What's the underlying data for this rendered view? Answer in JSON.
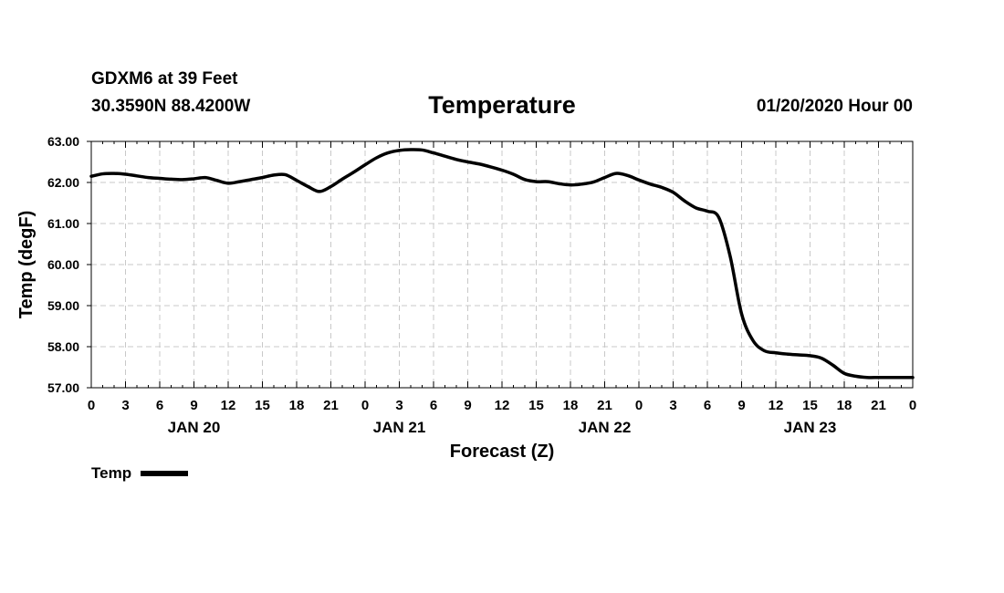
{
  "header": {
    "station": "GDXM6 at 39 Feet",
    "coords": "30.3590N 88.4200W",
    "title": "Temperature",
    "date": "01/20/2020 Hour 00"
  },
  "legend": {
    "label": "Temp"
  },
  "chart_data": {
    "type": "line",
    "title": "Temperature",
    "xlabel": "Forecast (Z)",
    "ylabel": "Temp (degF)",
    "x_unit": "forecast hour",
    "xlim": [
      0,
      72
    ],
    "ylim": [
      57,
      63
    ],
    "y_ticks": [
      57,
      58,
      59,
      60,
      61,
      62,
      63
    ],
    "y_tick_labels": [
      "57.00",
      "58.00",
      "59.00",
      "60.00",
      "61.00",
      "62.00",
      "63.00"
    ],
    "x_ticks": [
      0,
      3,
      6,
      9,
      12,
      15,
      18,
      21,
      24,
      27,
      30,
      33,
      36,
      39,
      42,
      45,
      48,
      51,
      54,
      57,
      60,
      63,
      66,
      69,
      72
    ],
    "x_tick_labels": [
      "0",
      "3",
      "6",
      "9",
      "12",
      "15",
      "18",
      "21",
      "0",
      "3",
      "6",
      "9",
      "12",
      "15",
      "18",
      "21",
      "0",
      "3",
      "6",
      "9",
      "12",
      "15",
      "18",
      "21",
      "0"
    ],
    "day_labels": [
      {
        "label": "JAN 20",
        "hour": 9
      },
      {
        "label": "JAN 21",
        "hour": 27
      },
      {
        "label": "JAN 22",
        "hour": 45
      },
      {
        "label": "JAN 23",
        "hour": 63
      }
    ],
    "grid": true,
    "series": [
      {
        "name": "Temp",
        "color": "#000000",
        "x": [
          0,
          1,
          2,
          3,
          4,
          5,
          6,
          7,
          8,
          9,
          10,
          11,
          12,
          13,
          14,
          15,
          16,
          17,
          18,
          19,
          20,
          21,
          22,
          23,
          24,
          25,
          26,
          27,
          28,
          29,
          30,
          31,
          32,
          33,
          34,
          35,
          36,
          37,
          38,
          39,
          40,
          41,
          42,
          43,
          44,
          45,
          46,
          47,
          48,
          49,
          50,
          51,
          52,
          53,
          54,
          55,
          56,
          57,
          58,
          59,
          60,
          61,
          62,
          63,
          64,
          65,
          66,
          67,
          68,
          69,
          70,
          71,
          72
        ],
        "values": [
          62.15,
          62.21,
          62.22,
          62.2,
          62.16,
          62.12,
          62.1,
          62.08,
          62.07,
          62.09,
          62.12,
          62.05,
          61.98,
          62.02,
          62.07,
          62.12,
          62.18,
          62.19,
          62.05,
          61.9,
          61.78,
          61.9,
          62.08,
          62.25,
          62.43,
          62.6,
          62.72,
          62.78,
          62.8,
          62.79,
          62.72,
          62.64,
          62.56,
          62.5,
          62.45,
          62.38,
          62.3,
          62.2,
          62.07,
          62.02,
          62.02,
          61.97,
          61.94,
          61.96,
          62.01,
          62.12,
          62.22,
          62.17,
          62.06,
          61.96,
          61.88,
          61.76,
          61.55,
          61.38,
          61.3,
          61.15,
          60.2,
          58.8,
          58.15,
          57.9,
          57.85,
          57.82,
          57.8,
          57.78,
          57.72,
          57.55,
          57.35,
          57.28,
          57.25,
          57.25,
          57.25,
          57.25,
          57.25
        ]
      }
    ]
  }
}
